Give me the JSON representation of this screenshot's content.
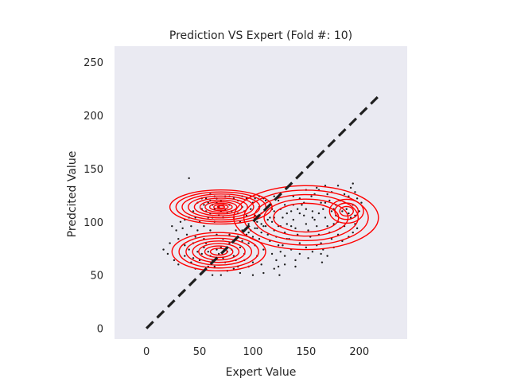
{
  "chart_data": {
    "type": "scatter",
    "title": "Prediction VS Expert (Fold #: 10)",
    "xlabel": "Expert Value",
    "ylabel": "Predcited Value",
    "xlim": [
      -30,
      245
    ],
    "ylim": [
      -10,
      265
    ],
    "x_ticks": [
      0,
      50,
      100,
      150,
      200
    ],
    "y_ticks": [
      0,
      50,
      100,
      150,
      200,
      250
    ],
    "grid": false,
    "background_color": "#eaeaf2",
    "point_color": "#1f1f1f",
    "contour_color": "#ff0000",
    "reference_line": {
      "x": [
        0,
        220
      ],
      "y": [
        0,
        220
      ],
      "style": "dashed",
      "color": "#1f1f1f"
    },
    "contours": [
      {
        "name": "cluster-a",
        "cx": 70,
        "cy": 114,
        "sx": 48,
        "sy": 16,
        "levels": [
          1.0,
          0.88,
          0.76,
          0.64,
          0.52,
          0.41,
          0.31,
          0.22,
          0.14,
          0.07
        ]
      },
      {
        "name": "cluster-b",
        "cx": 68,
        "cy": 72,
        "sx": 44,
        "sy": 18,
        "levels": [
          1.0,
          0.85,
          0.7,
          0.56,
          0.43,
          0.3,
          0.18
        ]
      },
      {
        "name": "cluster-c",
        "cx": 150,
        "cy": 104,
        "sx": 68,
        "sy": 30,
        "levels": [
          1.0,
          0.86,
          0.72,
          0.58,
          0.45
        ]
      },
      {
        "name": "cluster-d",
        "cx": 188,
        "cy": 110,
        "sx": 20,
        "sy": 14,
        "levels": [
          0.8,
          0.55,
          0.32
        ]
      }
    ],
    "points": [
      [
        40,
        141
      ],
      [
        58,
        118
      ],
      [
        60,
        120
      ],
      [
        62,
        116
      ],
      [
        64,
        112
      ],
      [
        56,
        110
      ],
      [
        66,
        118
      ],
      [
        68,
        114
      ],
      [
        70,
        110
      ],
      [
        72,
        116
      ],
      [
        60,
        108
      ],
      [
        62,
        104
      ],
      [
        54,
        116
      ],
      [
        52,
        112
      ],
      [
        66,
        122
      ],
      [
        68,
        106
      ],
      [
        74,
        112
      ],
      [
        76,
        108
      ],
      [
        58,
        104
      ],
      [
        64,
        100
      ],
      [
        70,
        120
      ],
      [
        72,
        104
      ],
      [
        78,
        116
      ],
      [
        80,
        110
      ],
      [
        82,
        104
      ],
      [
        84,
        112
      ],
      [
        86,
        108
      ],
      [
        88,
        100
      ],
      [
        90,
        114
      ],
      [
        92,
        110
      ],
      [
        94,
        106
      ],
      [
        96,
        98
      ],
      [
        98,
        112
      ],
      [
        100,
        118
      ],
      [
        102,
        106
      ],
      [
        104,
        100
      ],
      [
        106,
        114
      ],
      [
        108,
        108
      ],
      [
        110,
        96
      ],
      [
        112,
        120
      ],
      [
        50,
        100
      ],
      [
        48,
        92
      ],
      [
        46,
        86
      ],
      [
        44,
        80
      ],
      [
        42,
        96
      ],
      [
        38,
        88
      ],
      [
        36,
        78
      ],
      [
        34,
        94
      ],
      [
        30,
        84
      ],
      [
        24,
        96
      ],
      [
        22,
        80
      ],
      [
        20,
        70
      ],
      [
        16,
        74
      ],
      [
        26,
        64
      ],
      [
        30,
        60
      ],
      [
        36,
        68
      ],
      [
        40,
        74
      ],
      [
        42,
        62
      ],
      [
        46,
        56
      ],
      [
        50,
        64
      ],
      [
        52,
        70
      ],
      [
        54,
        76
      ],
      [
        56,
        80
      ],
      [
        58,
        72
      ],
      [
        60,
        68
      ],
      [
        62,
        64
      ],
      [
        64,
        58
      ],
      [
        66,
        74
      ],
      [
        68,
        70
      ],
      [
        70,
        76
      ],
      [
        72,
        66
      ],
      [
        74,
        62
      ],
      [
        76,
        72
      ],
      [
        78,
        80
      ],
      [
        80,
        74
      ],
      [
        82,
        68
      ],
      [
        84,
        64
      ],
      [
        86,
        58
      ],
      [
        88,
        76
      ],
      [
        90,
        82
      ],
      [
        92,
        70
      ],
      [
        94,
        88
      ],
      [
        96,
        80
      ],
      [
        98,
        92
      ],
      [
        100,
        86
      ],
      [
        102,
        78
      ],
      [
        104,
        94
      ],
      [
        106,
        84
      ],
      [
        108,
        90
      ],
      [
        110,
        74
      ],
      [
        112,
        96
      ],
      [
        114,
        88
      ],
      [
        116,
        82
      ],
      [
        118,
        100
      ],
      [
        120,
        92
      ],
      [
        122,
        86
      ],
      [
        124,
        78
      ],
      [
        126,
        96
      ],
      [
        128,
        104
      ],
      [
        130,
        90
      ],
      [
        132,
        98
      ],
      [
        134,
        84
      ],
      [
        136,
        110
      ],
      [
        138,
        102
      ],
      [
        140,
        94
      ],
      [
        142,
        88
      ],
      [
        144,
        80
      ],
      [
        146,
        116
      ],
      [
        148,
        106
      ],
      [
        150,
        98
      ],
      [
        152,
        92
      ],
      [
        154,
        86
      ],
      [
        156,
        110
      ],
      [
        158,
        102
      ],
      [
        160,
        96
      ],
      [
        162,
        88
      ],
      [
        164,
        80
      ],
      [
        166,
        74
      ],
      [
        168,
        104
      ],
      [
        170,
        96
      ],
      [
        172,
        90
      ],
      [
        174,
        84
      ],
      [
        176,
        112
      ],
      [
        178,
        106
      ],
      [
        180,
        100
      ],
      [
        182,
        94
      ],
      [
        184,
        110
      ],
      [
        186,
        118
      ],
      [
        188,
        112
      ],
      [
        190,
        108
      ],
      [
        192,
        104
      ],
      [
        194,
        116
      ],
      [
        196,
        98
      ],
      [
        198,
        94
      ],
      [
        190,
        124
      ],
      [
        192,
        132
      ],
      [
        194,
        136
      ],
      [
        196,
        128
      ],
      [
        186,
        126
      ],
      [
        180,
        134
      ],
      [
        170,
        126
      ],
      [
        164,
        118
      ],
      [
        158,
        126
      ],
      [
        150,
        130
      ],
      [
        144,
        122
      ],
      [
        138,
        124
      ],
      [
        130,
        116
      ],
      [
        124,
        120
      ],
      [
        118,
        112
      ],
      [
        116,
        104
      ],
      [
        120,
        124
      ],
      [
        160,
        132
      ],
      [
        166,
        112
      ],
      [
        172,
        120
      ],
      [
        176,
        98
      ],
      [
        180,
        88
      ],
      [
        184,
        82
      ],
      [
        176,
        76
      ],
      [
        170,
        68
      ],
      [
        164,
        70
      ],
      [
        160,
        78
      ],
      [
        156,
        72
      ],
      [
        150,
        76
      ],
      [
        144,
        70
      ],
      [
        140,
        64
      ],
      [
        136,
        74
      ],
      [
        130,
        68
      ],
      [
        126,
        72
      ],
      [
        122,
        64
      ],
      [
        118,
        70
      ],
      [
        124,
        58
      ],
      [
        100,
        62
      ],
      [
        96,
        58
      ],
      [
        92,
        64
      ],
      [
        104,
        68
      ],
      [
        108,
        60
      ],
      [
        88,
        52
      ],
      [
        82,
        56
      ],
      [
        76,
        54
      ],
      [
        70,
        50
      ],
      [
        62,
        50
      ],
      [
        58,
        58
      ],
      [
        54,
        84
      ],
      [
        48,
        72
      ],
      [
        44,
        66
      ],
      [
        200,
        110
      ],
      [
        202,
        118
      ],
      [
        198,
        122
      ],
      [
        196,
        106
      ],
      [
        194,
        90
      ],
      [
        190,
        86
      ],
      [
        186,
        96
      ],
      [
        182,
        120
      ],
      [
        178,
        116
      ],
      [
        174,
        128
      ],
      [
        168,
        134
      ],
      [
        162,
        130
      ],
      [
        155,
        124
      ],
      [
        148,
        118
      ],
      [
        142,
        112
      ],
      [
        136,
        96
      ],
      [
        132,
        84
      ],
      [
        128,
        78
      ],
      [
        124,
        96
      ],
      [
        120,
        104
      ],
      [
        114,
        114
      ],
      [
        110,
        122
      ],
      [
        106,
        124
      ],
      [
        102,
        122
      ],
      [
        98,
        124
      ],
      [
        94,
        122
      ],
      [
        90,
        124
      ],
      [
        86,
        120
      ],
      [
        82,
        122
      ],
      [
        78,
        124
      ],
      [
        74,
        124
      ],
      [
        64,
        124
      ],
      [
        60,
        126
      ],
      [
        56,
        122
      ],
      [
        52,
        122
      ],
      [
        48,
        118
      ],
      [
        44,
        110
      ],
      [
        40,
        104
      ],
      [
        36,
        102
      ],
      [
        32,
        100
      ],
      [
        28,
        92
      ],
      [
        46,
        104
      ],
      [
        54,
        96
      ],
      [
        60,
        92
      ],
      [
        66,
        88
      ],
      [
        72,
        84
      ],
      [
        78,
        88
      ],
      [
        84,
        92
      ],
      [
        90,
        92
      ],
      [
        96,
        90
      ],
      [
        102,
        94
      ],
      [
        108,
        98
      ],
      [
        114,
        102
      ],
      [
        120,
        110
      ],
      [
        126,
        112
      ],
      [
        132,
        108
      ],
      [
        138,
        116
      ],
      [
        144,
        108
      ],
      [
        150,
        112
      ],
      [
        156,
        104
      ],
      [
        162,
        108
      ],
      [
        168,
        118
      ],
      [
        174,
        110
      ],
      [
        165,
        62
      ],
      [
        152,
        66
      ],
      [
        140,
        58
      ],
      [
        130,
        60
      ],
      [
        120,
        56
      ],
      [
        110,
        52
      ],
      [
        100,
        50
      ],
      [
        125,
        50
      ]
    ]
  }
}
